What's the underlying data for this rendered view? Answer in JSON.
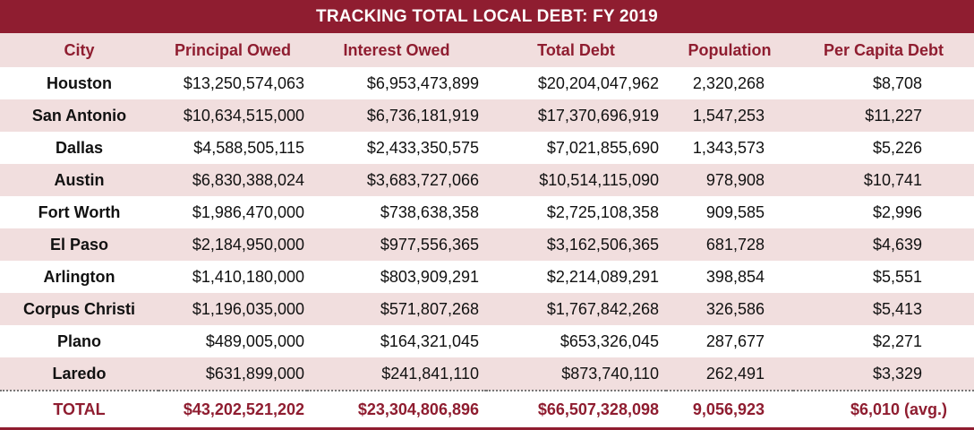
{
  "title": "TRACKING TOTAL LOCAL DEBT: FY 2019",
  "headers": [
    "City",
    "Principal Owed",
    "Interest Owed",
    "Total Debt",
    "Population",
    "Per Capita Debt"
  ],
  "rows": [
    [
      "Houston",
      "$13,250,574,063",
      "$6,953,473,899",
      "$20,204,047,962",
      "2,320,268",
      "$8,708"
    ],
    [
      "San Antonio",
      "$10,634,515,000",
      "$6,736,181,919",
      "$17,370,696,919",
      "1,547,253",
      "$11,227"
    ],
    [
      "Dallas",
      "$4,588,505,115",
      "$2,433,350,575",
      "$7,021,855,690",
      "1,343,573",
      "$5,226"
    ],
    [
      "Austin",
      "$6,830,388,024",
      "$3,683,727,066",
      "$10,514,115,090",
      "978,908",
      "$10,741"
    ],
    [
      "Fort Worth",
      "$1,986,470,000",
      "$738,638,358",
      "$2,725,108,358",
      "909,585",
      "$2,996"
    ],
    [
      "El Paso",
      "$2,184,950,000",
      "$977,556,365",
      "$3,162,506,365",
      "681,728",
      "$4,639"
    ],
    [
      "Arlington",
      "$1,410,180,000",
      "$803,909,291",
      "$2,214,089,291",
      "398,854",
      "$5,551"
    ],
    [
      "Corpus Christi",
      "$1,196,035,000",
      "$571,807,268",
      "$1,767,842,268",
      "326,586",
      "$5,413"
    ],
    [
      "Plano",
      "$489,005,000",
      "$164,321,045",
      "$653,326,045",
      "287,677",
      "$2,271"
    ],
    [
      "Laredo",
      "$631,899,000",
      "$241,841,110",
      "$873,740,110",
      "262,491",
      "$3,329"
    ]
  ],
  "total": [
    "TOTAL",
    "$43,202,521,202",
    "$23,304,806,896",
    "$66,507,328,098",
    "9,056,923",
    "$6,010 (avg.)"
  ],
  "colors": {
    "accent": "#8f1d30",
    "shade": "#f1dede"
  }
}
